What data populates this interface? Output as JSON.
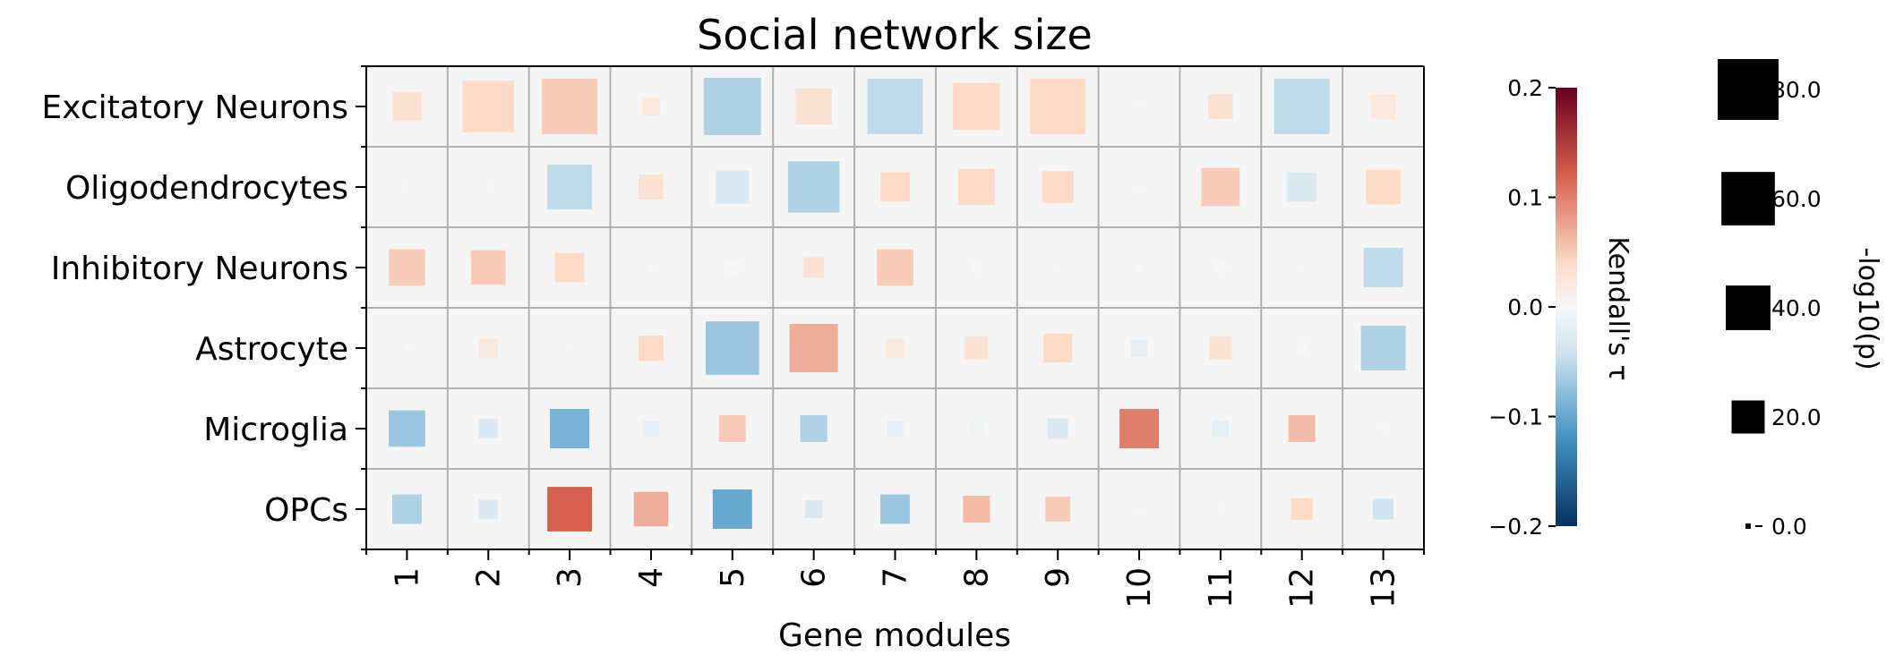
{
  "chart_data": {
    "type": "heatmap",
    "title": "Social network size",
    "xlabel": "Gene modules",
    "ylabel": "",
    "columns": [
      "1",
      "2",
      "3",
      "4",
      "5",
      "6",
      "7",
      "8",
      "9",
      "10",
      "11",
      "12",
      "13"
    ],
    "rows": [
      "Excitatory Neurons",
      "Oligodendrocytes",
      "Inhibitory Neurons",
      "Astrocyte",
      "Microglia",
      "OPCs"
    ],
    "tau": [
      [
        0.03,
        0.04,
        0.05,
        0.02,
        -0.06,
        0.03,
        -0.05,
        0.04,
        0.04,
        0.0,
        0.03,
        -0.05,
        0.02
      ],
      [
        0.0,
        0.0,
        -0.05,
        0.03,
        -0.03,
        -0.06,
        0.04,
        0.04,
        0.04,
        0.0,
        0.05,
        -0.03,
        0.04
      ],
      [
        0.05,
        0.05,
        0.04,
        0.0,
        0.0,
        0.03,
        0.05,
        0.0,
        0.0,
        0.0,
        0.0,
        0.0,
        -0.05
      ],
      [
        0.0,
        0.02,
        0.0,
        0.04,
        -0.07,
        0.07,
        0.02,
        0.03,
        0.04,
        -0.02,
        0.03,
        0.0,
        -0.06
      ],
      [
        -0.07,
        -0.03,
        -0.09,
        -0.02,
        0.05,
        -0.06,
        -0.02,
        -0.01,
        -0.03,
        0.1,
        -0.02,
        0.06,
        0.0
      ],
      [
        -0.06,
        -0.03,
        0.12,
        0.07,
        -0.1,
        -0.03,
        -0.07,
        0.06,
        0.05,
        0.0,
        0.0,
        0.04,
        -0.04
      ]
    ],
    "neglog10p": [
      [
        15,
        55,
        65,
        4,
        70,
        25,
        65,
        45,
        65,
        0,
        10,
        65,
        10
      ],
      [
        0,
        0,
        40,
        10,
        20,
        55,
        15,
        25,
        18,
        0,
        28,
        15,
        22
      ],
      [
        25,
        22,
        15,
        0,
        2,
        6,
        25,
        1,
        0,
        0,
        1,
        0,
        30
      ],
      [
        0,
        5,
        0,
        10,
        60,
        48,
        5,
        8,
        14,
        3,
        8,
        1,
        40
      ],
      [
        25,
        5,
        30,
        3,
        12,
        12,
        3,
        2,
        6,
        30,
        3,
        12,
        0
      ],
      [
        15,
        5,
        40,
        22,
        30,
        4,
        15,
        12,
        10,
        0,
        0,
        7,
        6
      ]
    ],
    "tau_colorbar": {
      "label": "Kendall's τ",
      "range": [
        -0.2,
        0.2
      ],
      "ticks": [
        "0.2",
        "0.1",
        "0.0",
        "−0.1",
        "−0.2"
      ],
      "colormap": "RdBu_r",
      "colors": {
        "high": "#67001f",
        "mid_high": "#d6604d",
        "light_high": "#fddbc7",
        "center": "#f7f7f7",
        "light_low": "#d1e5f0",
        "mid_low": "#4393c3",
        "low": "#053061"
      }
    },
    "size_legend": {
      "label": "-log10(p)",
      "values": [
        80,
        60,
        40,
        20,
        0
      ],
      "ticks": [
        "80.0",
        "60.0",
        "40.0",
        "20.0",
        "0.0"
      ],
      "color": "#000000"
    },
    "grid": true,
    "background": "#f5f5f5",
    "grid_color": "#b0b0b0"
  }
}
